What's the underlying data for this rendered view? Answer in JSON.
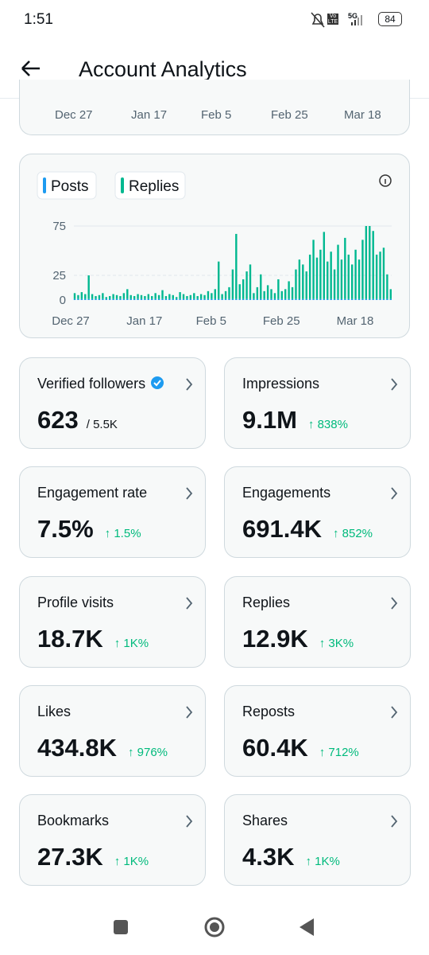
{
  "status_bar": {
    "time": "1:51",
    "network": "5G",
    "volte": "Vo LTE",
    "battery": "84"
  },
  "header": {
    "title": "Account Analytics"
  },
  "partial_chart": {
    "x_labels": [
      "Dec 27",
      "Jan 17",
      "Feb 5",
      "Feb 25",
      "Mar 18"
    ]
  },
  "chart_data": {
    "type": "bar",
    "stacked": true,
    "grid": true,
    "categories": [
      "Dec 27",
      null,
      null,
      null,
      null,
      null,
      null,
      null,
      null,
      null,
      null,
      null,
      null,
      null,
      null,
      null,
      null,
      null,
      null,
      null,
      null,
      "Jan 17",
      null,
      null,
      null,
      null,
      null,
      null,
      null,
      null,
      null,
      null,
      null,
      null,
      null,
      null,
      null,
      null,
      null,
      null,
      "Feb 5",
      null,
      null,
      null,
      null,
      null,
      null,
      null,
      null,
      null,
      null,
      null,
      null,
      null,
      null,
      null,
      null,
      null,
      null,
      null,
      "Feb 25",
      null,
      null,
      null,
      null,
      null,
      null,
      null,
      null,
      null,
      null,
      null,
      null,
      null,
      null,
      null,
      null,
      null,
      null,
      null,
      null,
      "Mar 18",
      null,
      null,
      null,
      null,
      null,
      null,
      null,
      null,
      null
    ],
    "series": [
      {
        "name": "Posts",
        "color": "#1d9bf0",
        "values": [
          1,
          1,
          1,
          1,
          1,
          1,
          1,
          1,
          1,
          1,
          1,
          1,
          1,
          1,
          1,
          1,
          1,
          1,
          1,
          1,
          1,
          1,
          1,
          1,
          1,
          1,
          1,
          1,
          1,
          1,
          1,
          1,
          1,
          1,
          1,
          1,
          1,
          1,
          1,
          1,
          1,
          1,
          1,
          1,
          1,
          1,
          1,
          1,
          1,
          1,
          1,
          1,
          1,
          1,
          1,
          1,
          1,
          1,
          1,
          1,
          1,
          1,
          1,
          1,
          1,
          1,
          1,
          1,
          1,
          1,
          1,
          1,
          1,
          1,
          1,
          1,
          1,
          1,
          1,
          1,
          1,
          1,
          1,
          1,
          1,
          1,
          1,
          1,
          1,
          1,
          1
        ]
      },
      {
        "name": "Replies",
        "color": "#00b890",
        "values": [
          6,
          4,
          7,
          5,
          24,
          5,
          3,
          4,
          6,
          2,
          3,
          5,
          4,
          3,
          6,
          10,
          4,
          3,
          5,
          4,
          3,
          5,
          3,
          6,
          4,
          9,
          3,
          5,
          4,
          2,
          7,
          5,
          3,
          4,
          6,
          3,
          5,
          4,
          8,
          6,
          10,
          38,
          5,
          8,
          12,
          30,
          66,
          15,
          20,
          28,
          35,
          6,
          12,
          25,
          8,
          14,
          10,
          6,
          20,
          8,
          10,
          18,
          12,
          30,
          40,
          35,
          28,
          45,
          60,
          42,
          50,
          68,
          38,
          48,
          30,
          55,
          40,
          62,
          45,
          35,
          50,
          40,
          60,
          74,
          74,
          69,
          45,
          48,
          52,
          25,
          10
        ]
      }
    ],
    "ylim": [
      0,
      80
    ],
    "yticks": [
      0,
      25,
      75
    ]
  },
  "metrics": [
    {
      "label": "Verified followers",
      "value": "623",
      "sub": "/ 5.5K",
      "verified": true
    },
    {
      "label": "Impressions",
      "value": "9.1M",
      "change": "↑ 838%"
    },
    {
      "label": "Engagement rate",
      "value": "7.5%",
      "change": "↑ 1.5%"
    },
    {
      "label": "Engagements",
      "value": "691.4K",
      "change": "↑ 852%"
    },
    {
      "label": "Profile visits",
      "value": "18.7K",
      "change": "↑ 1K%"
    },
    {
      "label": "Replies",
      "value": "12.9K",
      "change": "↑ 3K%"
    },
    {
      "label": "Likes",
      "value": "434.8K",
      "change": "↑ 976%"
    },
    {
      "label": "Reposts",
      "value": "60.4K",
      "change": "↑ 712%"
    },
    {
      "label": "Bookmarks",
      "value": "27.3K",
      "change": "↑ 1K%"
    },
    {
      "label": "Shares",
      "value": "4.3K",
      "change": "↑ 1K%"
    }
  ]
}
